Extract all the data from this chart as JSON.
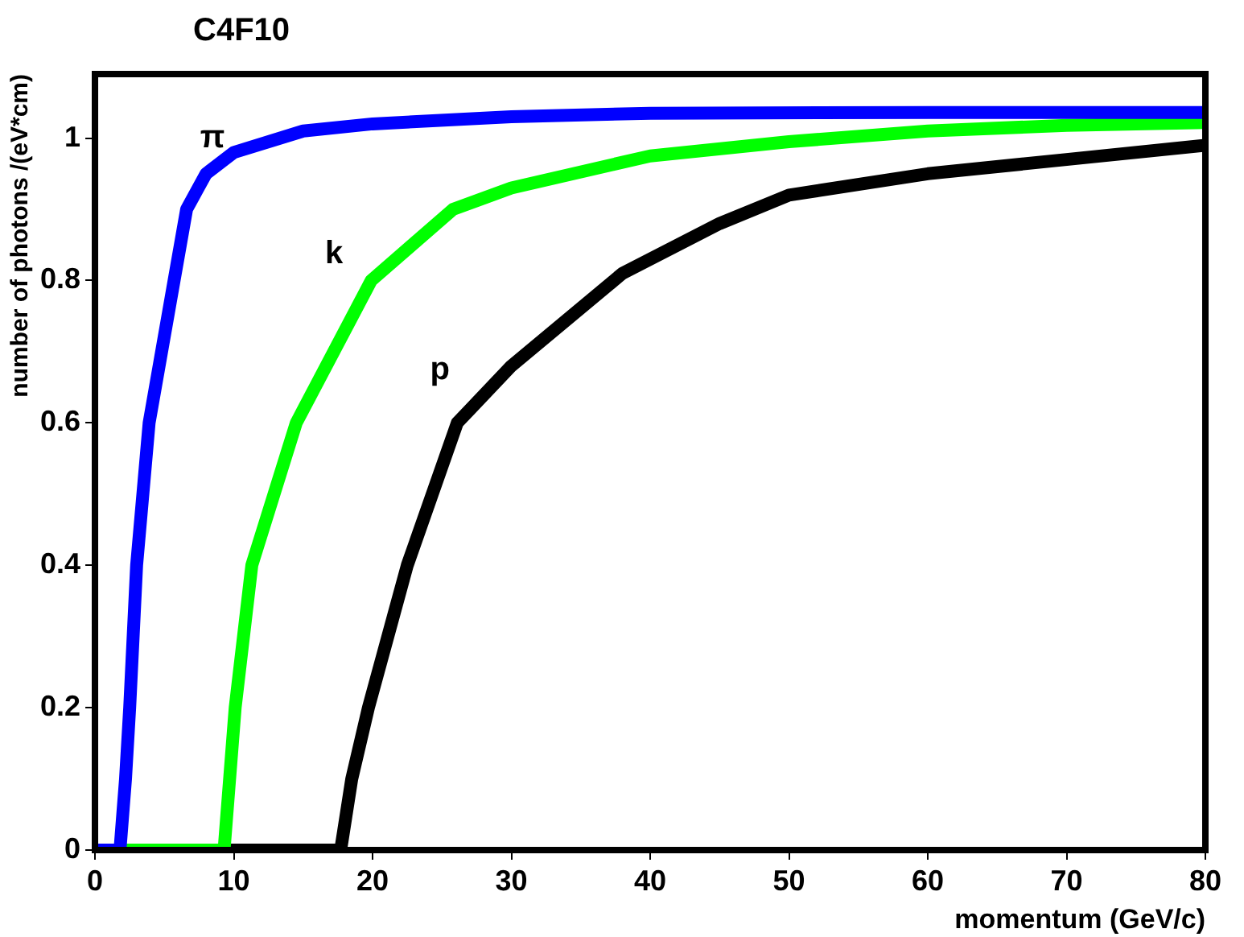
{
  "chart_data": {
    "type": "line",
    "title": "C4F10",
    "xlabel": "momentum (GeV/c)",
    "ylabel": "number of photons /(eV*cm)",
    "xlim": [
      0,
      80
    ],
    "xticks": [
      0,
      10,
      20,
      30,
      40,
      50,
      60,
      70,
      80
    ],
    "ylim": [
      0,
      1.09
    ],
    "yticks": [
      0,
      0.2,
      0.4,
      0.6,
      0.8,
      1
    ],
    "grid": false,
    "legend": false,
    "marker": "none",
    "line_style": "solid",
    "series": [
      {
        "name": "π",
        "color": "#0000ff",
        "x": [
          0,
          1.8,
          2.2,
          2.5,
          3,
          3.9,
          5.7,
          6.6,
          8,
          10,
          15,
          20,
          30,
          40,
          60,
          80
        ],
        "values": [
          0,
          0,
          0.1,
          0.2,
          0.4,
          0.6,
          0.8,
          0.9,
          0.95,
          0.98,
          1.01,
          1.02,
          1.03,
          1.035,
          1.036,
          1.036
        ]
      },
      {
        "name": "k",
        "color": "#00ff00",
        "x": [
          0,
          9.3,
          9.7,
          10.1,
          11.3,
          14.5,
          19.9,
          25.8,
          30,
          40,
          50,
          60,
          70,
          80
        ],
        "values": [
          0,
          0,
          0.1,
          0.2,
          0.4,
          0.6,
          0.8,
          0.9,
          0.93,
          0.975,
          0.995,
          1.01,
          1.018,
          1.022
        ]
      },
      {
        "name": "p",
        "color": "#000000",
        "x": [
          0,
          17.7,
          18.5,
          19.7,
          22.5,
          26.1,
          30,
          38,
          45,
          50,
          60,
          70,
          80
        ],
        "values": [
          0,
          0,
          0.1,
          0.2,
          0.4,
          0.6,
          0.68,
          0.81,
          0.88,
          0.92,
          0.95,
          0.97,
          0.99
        ]
      }
    ]
  }
}
